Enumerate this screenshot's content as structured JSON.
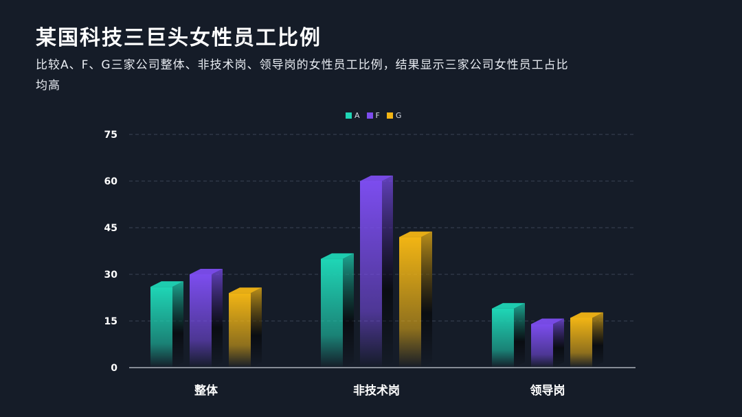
{
  "title": "某国科技三巨头女性员工比例",
  "subtitle": "比较A、F、G三家公司整体、非技术岗、领导岗的女性员工比例，结果显示三家公司女性员工占比均高",
  "colors": {
    "A": "#1fd6b6",
    "F": "#7c4dee",
    "G": "#f2b514",
    "background": "#151c28"
  },
  "chart_data": {
    "type": "bar",
    "categories": [
      "整体",
      "非技术岗",
      "领导岗"
    ],
    "series": [
      {
        "name": "A",
        "values": [
          26,
          35,
          19
        ]
      },
      {
        "name": "F",
        "values": [
          30,
          60,
          14
        ]
      },
      {
        "name": "G",
        "values": [
          24,
          42,
          16
        ]
      }
    ],
    "ylim": [
      0,
      75
    ],
    "yticks": [
      "0",
      "15",
      "30",
      "45",
      "60",
      "75"
    ],
    "grid": true,
    "legend_position": "top-center"
  }
}
